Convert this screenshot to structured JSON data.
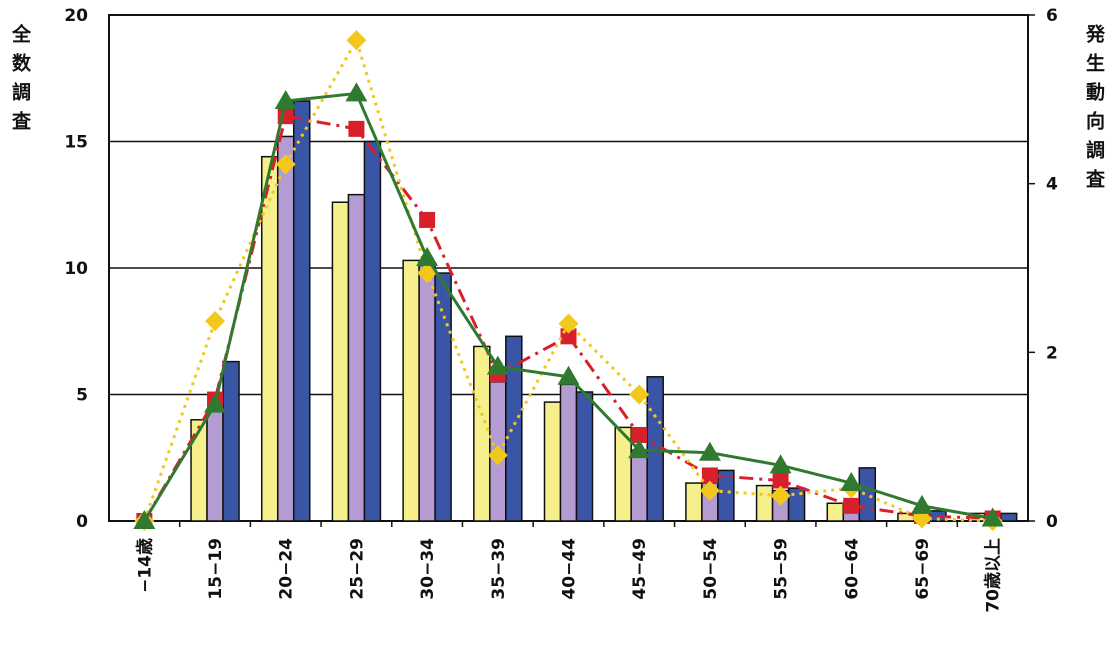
{
  "chart_data": {
    "type": "bar",
    "ylabel_left": "全数調査",
    "ylabel_right": "発生動向調査",
    "categories": [
      "−14歳",
      "15−19",
      "20−24",
      "25−29",
      "30−34",
      "35−39",
      "40−44",
      "45−49",
      "50−54",
      "55−59",
      "60−64",
      "65−69",
      "70歳以上"
    ],
    "left_axis": {
      "ylim": [
        0,
        20
      ],
      "ticks": [
        "0",
        "5",
        "10",
        "15",
        "20"
      ]
    },
    "right_axis": {
      "ylim": [
        0,
        6
      ],
      "ticks": [
        "0",
        "2",
        "4",
        "6"
      ]
    },
    "grid": true,
    "bar_series": [
      {
        "color": "#f5f08c",
        "axis": "left",
        "values": [
          0,
          4.0,
          14.4,
          12.6,
          10.3,
          6.9,
          4.7,
          3.7,
          1.5,
          1.4,
          0.7,
          0.3,
          0.3
        ]
      },
      {
        "color": "#b49bd2",
        "axis": "left",
        "values": [
          0,
          4.4,
          15.2,
          12.9,
          10.1,
          5.5,
          5.4,
          2.8,
          1.5,
          1.2,
          0.5,
          0.3,
          0.3
        ]
      },
      {
        "color": "#3a55a5",
        "axis": "left",
        "values": [
          0,
          6.3,
          16.6,
          15.0,
          9.8,
          7.3,
          5.1,
          5.7,
          2.0,
          1.3,
          2.1,
          0.4,
          0.3
        ]
      }
    ],
    "line_series": [
      {
        "color": "#d8202c",
        "style": "dashdot",
        "marker": "square",
        "axis": "left",
        "values": [
          0,
          4.8,
          16.0,
          15.5,
          11.9,
          5.8,
          7.3,
          3.4,
          1.8,
          1.6,
          0.6,
          0.2,
          0.1
        ]
      },
      {
        "color": "#f2c81d",
        "style": "dotted",
        "marker": "diamond",
        "axis": "left",
        "values": [
          0,
          7.9,
          14.1,
          19.0,
          9.8,
          2.6,
          7.8,
          5.0,
          1.2,
          1.0,
          1.3,
          0.1,
          0.0
        ]
      },
      {
        "color": "#2f7a2f",
        "style": "solid",
        "marker": "triangle",
        "axis": "left",
        "values": [
          0,
          4.6,
          16.6,
          16.9,
          10.4,
          6.1,
          5.7,
          2.8,
          2.7,
          2.2,
          1.5,
          0.6,
          0.1
        ]
      }
    ]
  }
}
